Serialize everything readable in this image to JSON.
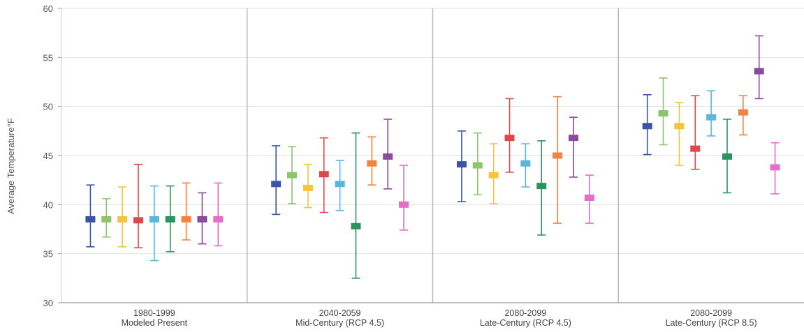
{
  "chart_data": {
    "type": "scatter",
    "title": "",
    "ylabel": "Average Temperature°F",
    "ylim": [
      30,
      60
    ],
    "yticks": [
      30,
      35,
      40,
      45,
      50,
      55,
      60
    ],
    "grid": true,
    "categories": [
      {
        "line1": "1980-1999",
        "line2": "Modeled Present"
      },
      {
        "line1": "2040-2059",
        "line2": "Mid-Century (RCP 4.5)"
      },
      {
        "line1": "2080-2099",
        "line2": "Late-Century (RCP 4.5)"
      },
      {
        "line1": "2080-2099",
        "line2": "Late-Century (RCP 8.5)"
      }
    ],
    "series_colors": [
      "#3a55a6",
      "#8cc56b",
      "#f2c53d",
      "#e0474c",
      "#5bb6da",
      "#2a9361",
      "#f08442",
      "#8a4a9e",
      "#e36fc7"
    ],
    "groups": [
      {
        "points": [
          {
            "mean": 38.5,
            "low": 35.7,
            "high": 42.0
          },
          {
            "mean": 38.5,
            "low": 36.7,
            "high": 40.6
          },
          {
            "mean": 38.5,
            "low": 35.7,
            "high": 41.8
          },
          {
            "mean": 38.4,
            "low": 35.6,
            "high": 44.1
          },
          {
            "mean": 38.5,
            "low": 34.3,
            "high": 41.9
          },
          {
            "mean": 38.5,
            "low": 35.2,
            "high": 41.9
          },
          {
            "mean": 38.5,
            "low": 36.4,
            "high": 42.2
          },
          {
            "mean": 38.5,
            "low": 36.0,
            "high": 41.2
          },
          {
            "mean": 38.5,
            "low": 35.8,
            "high": 42.2
          }
        ]
      },
      {
        "points": [
          {
            "mean": 42.1,
            "low": 39.0,
            "high": 46.0
          },
          {
            "mean": 43.0,
            "low": 40.1,
            "high": 45.9
          },
          {
            "mean": 41.7,
            "low": 39.7,
            "high": 44.1
          },
          {
            "mean": 43.1,
            "low": 39.2,
            "high": 46.8
          },
          {
            "mean": 42.1,
            "low": 39.4,
            "high": 44.5
          },
          {
            "mean": 37.8,
            "low": 32.5,
            "high": 47.3
          },
          {
            "mean": 44.2,
            "low": 42.0,
            "high": 46.9
          },
          {
            "mean": 44.9,
            "low": 41.6,
            "high": 48.7
          },
          {
            "mean": 40.0,
            "low": 37.4,
            "high": 44.0
          }
        ]
      },
      {
        "points": [
          {
            "mean": 44.1,
            "low": 40.3,
            "high": 47.5
          },
          {
            "mean": 44.0,
            "low": 41.0,
            "high": 47.3
          },
          {
            "mean": 43.0,
            "low": 40.1,
            "high": 46.2
          },
          {
            "mean": 46.8,
            "low": 43.3,
            "high": 50.8
          },
          {
            "mean": 44.2,
            "low": 41.8,
            "high": 46.2
          },
          {
            "mean": 41.9,
            "low": 36.9,
            "high": 46.5
          },
          {
            "mean": 45.0,
            "low": 38.1,
            "high": 51.0
          },
          {
            "mean": 46.8,
            "low": 42.8,
            "high": 48.9
          },
          {
            "mean": 40.7,
            "low": 38.1,
            "high": 43.0
          }
        ]
      },
      {
        "points": [
          {
            "mean": 48.0,
            "low": 45.1,
            "high": 51.2
          },
          {
            "mean": 49.3,
            "low": 46.1,
            "high": 52.9
          },
          {
            "mean": 48.0,
            "low": 44.0,
            "high": 50.4
          },
          {
            "mean": 45.7,
            "low": 43.6,
            "high": 51.1
          },
          {
            "mean": 48.9,
            "low": 47.0,
            "high": 51.6
          },
          {
            "mean": 44.9,
            "low": 41.2,
            "high": 48.7
          },
          {
            "mean": 49.4,
            "low": 47.1,
            "high": 51.1
          },
          {
            "mean": 53.6,
            "low": 50.8,
            "high": 57.2
          },
          {
            "mean": 43.8,
            "low": 41.1,
            "high": 46.3
          }
        ]
      }
    ]
  }
}
